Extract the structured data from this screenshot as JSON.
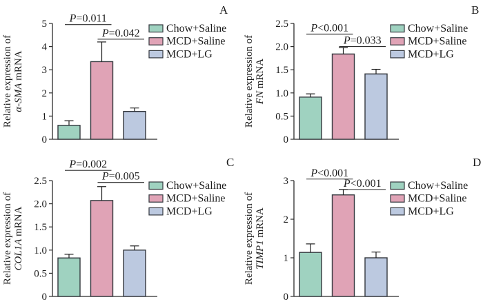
{
  "figure": {
    "background": "#ffffff",
    "text_color": "#1c1c1c",
    "axis_color": "#2b2b2b",
    "bar_border_color": "#33373d",
    "error_bar_color": "#1c1c1c",
    "groups": [
      {
        "label": "Chow+Saline",
        "color": "#9fd2c0"
      },
      {
        "label": "MCD+Saline",
        "color": "#e0a3b6"
      },
      {
        "label": "MCD+LG",
        "color": "#bcc9e0"
      }
    ]
  },
  "chart_data": [
    {
      "type": "bar",
      "panel_label": "A",
      "title": "",
      "ylabel_prefix": "Relative expression of",
      "gene": "α-SMA",
      "ylabel_unit": "mRNA",
      "xlabel": "",
      "ylim": [
        0,
        5
      ],
      "yticks": [
        "0",
        "1",
        "2",
        "3",
        "4",
        "5"
      ],
      "grid": "off",
      "legend_position": "right",
      "categories": [
        "Chow+Saline",
        "MCD+Saline",
        "MCD+LG"
      ],
      "values": [
        0.6,
        3.35,
        1.2
      ],
      "errors": [
        0.2,
        0.85,
        0.15
      ],
      "significance": [
        {
          "label": "P=0.011",
          "pair": [
            0,
            1
          ],
          "line_y": 4.95
        },
        {
          "label": "P=0.042",
          "pair": [
            1,
            2
          ],
          "line_y": 4.32
        }
      ]
    },
    {
      "type": "bar",
      "panel_label": "B",
      "title": "",
      "ylabel_prefix": "Relative expression of",
      "gene": "FN",
      "ylabel_unit": "mRNA",
      "xlabel": "",
      "ylim": [
        0,
        2.5
      ],
      "yticks": [
        "0",
        "0.5",
        "1.0",
        "1.5",
        "2.0",
        "2.5"
      ],
      "grid": "off",
      "legend_position": "right",
      "categories": [
        "Chow+Saline",
        "MCD+Saline",
        "MCD+LG"
      ],
      "values": [
        0.91,
        1.84,
        1.41
      ],
      "errors": [
        0.07,
        0.14,
        0.1
      ],
      "significance": [
        {
          "label": "P<0.001",
          "pair": [
            0,
            1
          ],
          "line_y": 2.27
        },
        {
          "label": "P=0.033",
          "pair": [
            1,
            2
          ],
          "line_y": 2.0
        }
      ]
    },
    {
      "type": "bar",
      "panel_label": "C",
      "title": "",
      "ylabel_prefix": "Relative expression of",
      "gene": "COL1A",
      "ylabel_unit": "mRNA",
      "xlabel": "",
      "ylim": [
        0,
        2.5
      ],
      "yticks": [
        "0",
        "0.5",
        "1.0",
        "1.5",
        "2.0",
        "2.5"
      ],
      "grid": "off",
      "legend_position": "right",
      "categories": [
        "Chow+Saline",
        "MCD+Saline",
        "MCD+LG"
      ],
      "values": [
        0.83,
        2.07,
        1.0
      ],
      "errors": [
        0.08,
        0.3,
        0.09
      ],
      "significance": [
        {
          "label": "P=0.002",
          "pair": [
            0,
            1
          ],
          "line_y": 2.72
        },
        {
          "label": "P=0.005",
          "pair": [
            1,
            2
          ],
          "line_y": 2.46
        }
      ]
    },
    {
      "type": "bar",
      "panel_label": "D",
      "title": "",
      "ylabel_prefix": "Relative expression of",
      "gene": "TIMP1",
      "ylabel_unit": "mRNA",
      "xlabel": "",
      "ylim": [
        0,
        3
      ],
      "yticks": [
        "0",
        "1",
        "2",
        "3"
      ],
      "grid": "off",
      "legend_position": "right",
      "categories": [
        "Chow+Saline",
        "MCD+Saline",
        "MCD+LG"
      ],
      "values": [
        1.14,
        2.63,
        1.0
      ],
      "errors": [
        0.22,
        0.14,
        0.15
      ],
      "significance": [
        {
          "label": "P<0.001",
          "pair": [
            0,
            1
          ],
          "line_y": 3.04
        },
        {
          "label": "P<0.001",
          "pair": [
            1,
            2
          ],
          "line_y": 2.77
        }
      ]
    }
  ]
}
